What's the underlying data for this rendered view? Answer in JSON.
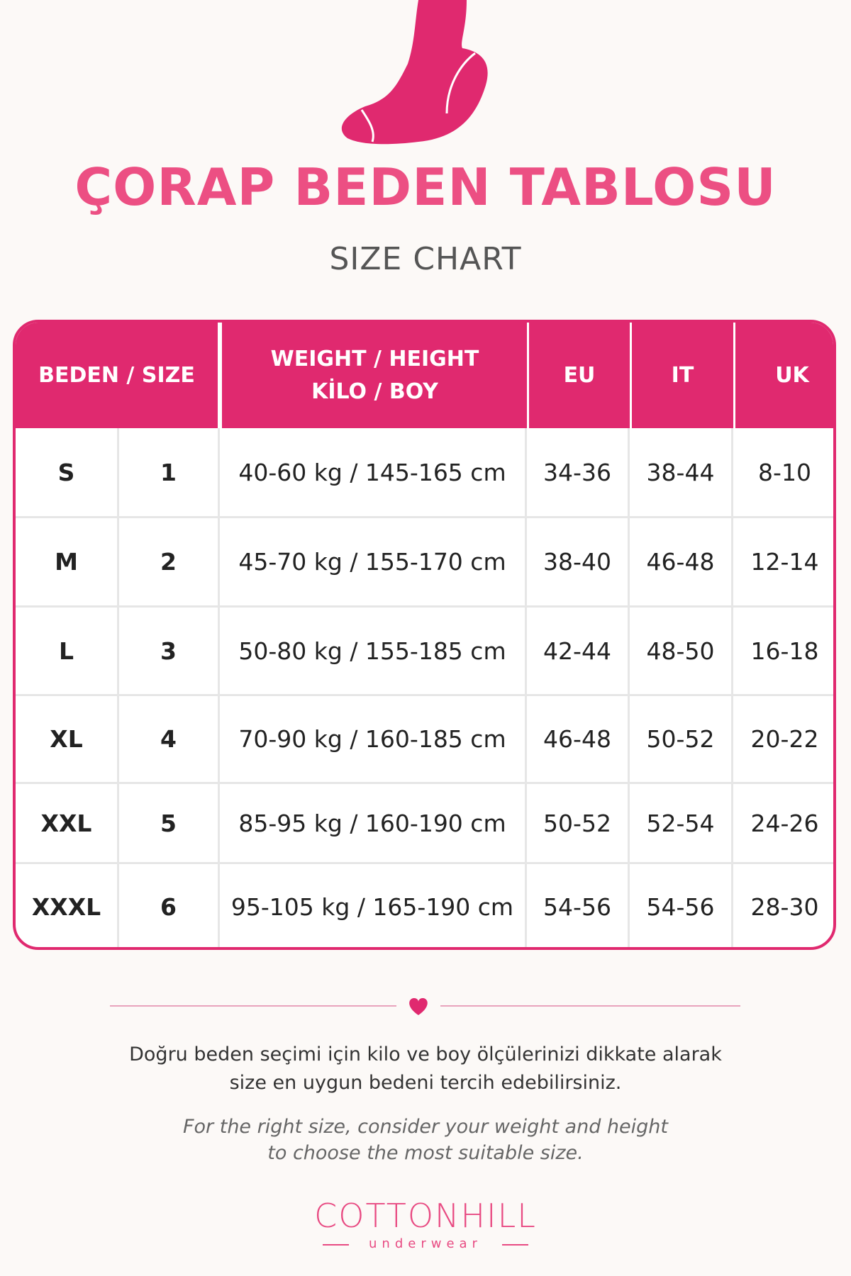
{
  "title": "ÇORAP BEDEN TABLOSU",
  "subtitle": "SIZE CHART",
  "table": {
    "header": {
      "size": "BEDEN / SIZE",
      "weight_height": [
        "WEIGHT / HEIGHT",
        "KİLO / BOY"
      ],
      "eu": "EU",
      "it": "IT",
      "uk": "UK"
    },
    "rows": [
      [
        "S",
        "1",
        "40-60 kg / 145-165 cm",
        "34-36",
        "38-44",
        "8-10"
      ],
      [
        "M",
        "2",
        "45-70 kg / 155-170 cm",
        "38-40",
        "46-48",
        "12-14"
      ],
      [
        "L",
        "3",
        "50-80 kg / 155-185 cm",
        "42-44",
        "48-50",
        "16-18"
      ],
      [
        "XL",
        "4",
        "70-90 kg / 160-185 cm",
        "46-48",
        "50-52",
        "20-22"
      ],
      [
        "XXL",
        "5",
        "85-95 kg / 160-190 cm",
        "50-52",
        "52-54",
        "24-26"
      ],
      [
        "XXXL",
        "6",
        "95-105 kg / 165-190 cm",
        "54-56",
        "54-56",
        "28-30"
      ]
    ]
  },
  "note_tr": [
    "Doğru beden seçimi için kilo ve boy ölçülerinizi dikkate alarak",
    "size en uygun bedeni tercih edebilirsiniz."
  ],
  "note_en": [
    "For the right size, consider your weight and height",
    "to choose the most suitable size."
  ],
  "brand": {
    "name": "COTTONHILL",
    "tagline": "underwear"
  }
}
